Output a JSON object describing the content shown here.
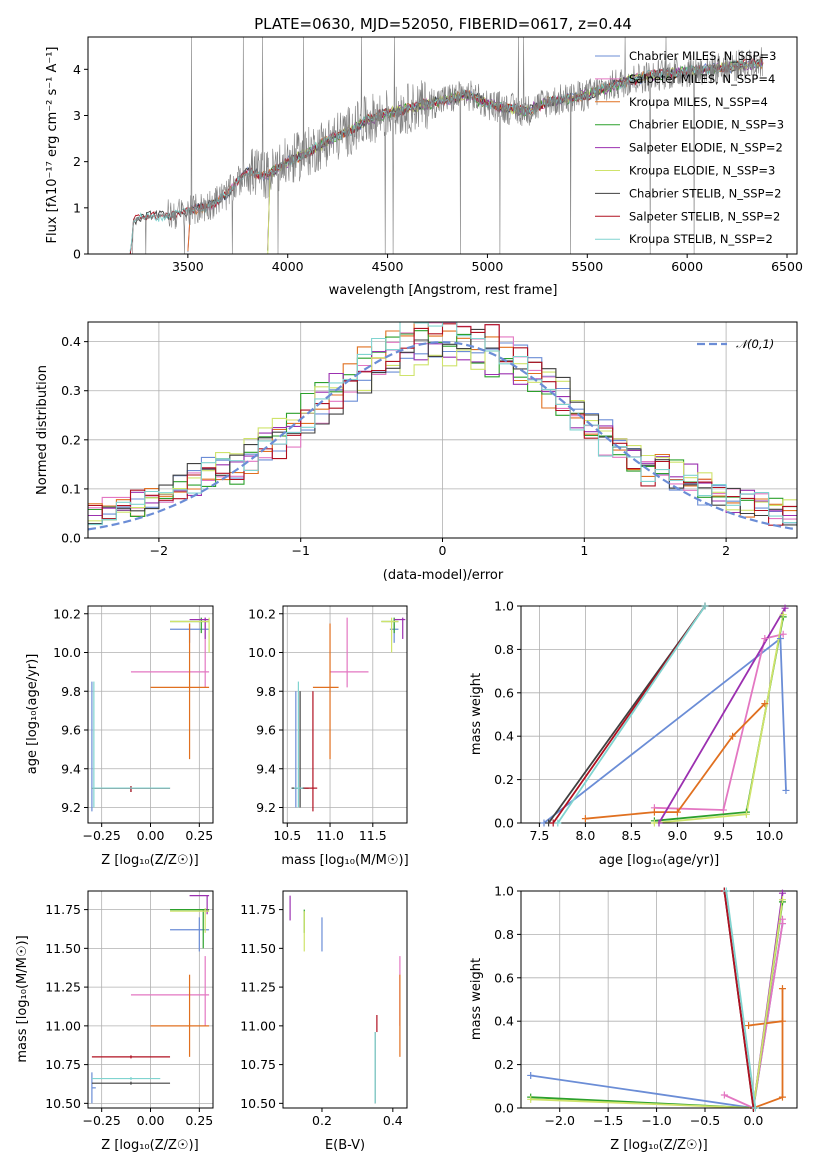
{
  "figure_title": "PLATE=0630, MJD=52050, FIBERID=0617, z=0.44",
  "chart_data": [
    {
      "id": "spectrum",
      "type": "line",
      "title": "PLATE=0630, MJD=52050, FIBERID=0617, z=0.44",
      "xlabel": "wavelength [Angstrom, rest frame]",
      "ylabel": "Flux [fλ10⁻¹⁷ erg cm⁻² s⁻¹ A⁻¹]",
      "xlim": [
        3000,
        6550
      ],
      "ylim": [
        0,
        4.7
      ],
      "xticks": [
        3500,
        4000,
        4500,
        5000,
        5500,
        6000,
        6500
      ],
      "yticks": [
        0,
        1,
        2,
        3,
        4
      ],
      "grid": false,
      "legend_position": "top-right",
      "data_envelope": {
        "x": [
          3210,
          3230,
          3300,
          3400,
          3500,
          3600,
          3700,
          3800,
          3900,
          4000,
          4100,
          4200,
          4300,
          4400,
          4500,
          4600,
          4700,
          4800,
          4900,
          5000,
          5100,
          5200,
          5300,
          5400,
          5500,
          5600,
          5700,
          5800,
          5900,
          6000,
          6100,
          6200,
          6300,
          6380
        ],
        "y": [
          0.0,
          0.75,
          0.8,
          0.85,
          0.9,
          1.05,
          1.3,
          1.8,
          1.7,
          2.0,
          2.2,
          2.45,
          2.65,
          2.9,
          3.05,
          3.15,
          3.25,
          3.35,
          3.45,
          3.25,
          3.15,
          3.1,
          3.3,
          3.35,
          3.45,
          3.6,
          3.75,
          3.85,
          3.9,
          3.95,
          4.0,
          4.05,
          4.1,
          4.15
        ]
      },
      "series": [
        {
          "name": "Chabrier MILES, N_SSP=3",
          "color": "#6b8dd6",
          "x0": 3500
        },
        {
          "name": "Salpeter MILES, N_SSP=4",
          "color": "#e377c2",
          "x0": 3500
        },
        {
          "name": "Kroupa MILES, N_SSP=4",
          "color": "#e07020",
          "x0": 3500
        },
        {
          "name": "Chabrier ELODIE, N_SSP=3",
          "color": "#2ca02c",
          "x0": 3900
        },
        {
          "name": "Salpeter ELODIE, N_SSP=2",
          "color": "#9b30b0",
          "x0": 3900
        },
        {
          "name": "Kroupa ELODIE, N_SSP=3",
          "color": "#cfe36b",
          "x0": 3900
        },
        {
          "name": "Chabrier STELIB, N_SSP=2",
          "color": "#404040",
          "x0": 3210
        },
        {
          "name": "Salpeter STELIB, N_SSP=2",
          "color": "#b01020",
          "x0": 3210
        },
        {
          "name": "Kroupa STELIB, N_SSP=2",
          "color": "#80d4d0",
          "x0": 3210
        }
      ]
    },
    {
      "id": "residuals",
      "type": "step",
      "xlabel": "(data-model)/error",
      "ylabel": "Normed distribution",
      "xlim": [
        -2.5,
        2.5
      ],
      "ylim": [
        0,
        0.44
      ],
      "xticks": [
        -2,
        -1,
        0,
        1,
        2
      ],
      "yticks": [
        0.0,
        0.1,
        0.2,
        0.3,
        0.4
      ],
      "grid": true,
      "legend_position": "top-right",
      "reference": {
        "name": "𝒩(0,1)",
        "color": "#6b8dd6",
        "style": "dashed"
      },
      "bin_width": 0.1,
      "series_colors": [
        "#6b8dd6",
        "#e377c2",
        "#e07020",
        "#2ca02c",
        "#9b30b0",
        "#cfe36b",
        "#404040",
        "#b01020",
        "#80d4d0"
      ]
    },
    {
      "id": "age_vs_Z",
      "type": "errorbar",
      "xlabel": "Z [log₁₀(Z/Z☉)]",
      "ylabel": "age  [log₁₀(age/yr)]",
      "xlim": [
        -0.32,
        0.32
      ],
      "ylim": [
        9.12,
        10.24
      ],
      "xticks": [
        -0.25,
        0.0,
        0.25
      ],
      "yticks": [
        9.2,
        9.4,
        9.6,
        9.8,
        10.0,
        10.2
      ],
      "grid": true,
      "points": [
        {
          "color": "#6b8dd6",
          "x": 0.2,
          "y": 10.12,
          "xlo": 0.1,
          "xhi": 0.3,
          "ylo": 10.05,
          "yhi": 10.15
        },
        {
          "color": "#6b8dd6",
          "x": -0.3,
          "y": 9.3,
          "xlo": -0.3,
          "xhi": -0.28,
          "ylo": 9.18,
          "yhi": 9.85
        },
        {
          "color": "#e377c2",
          "x": 0.28,
          "y": 9.9,
          "xlo": -0.1,
          "xhi": 0.3,
          "ylo": 9.82,
          "yhi": 10.18
        },
        {
          "color": "#e07020",
          "x": 0.2,
          "y": 9.82,
          "xlo": 0.0,
          "xhi": 0.3,
          "ylo": 9.45,
          "yhi": 10.15
        },
        {
          "color": "#2ca02c",
          "x": 0.26,
          "y": 10.16,
          "xlo": 0.1,
          "xhi": 0.3,
          "ylo": 10.1,
          "yhi": 10.18
        },
        {
          "color": "#9b30b0",
          "x": 0.28,
          "y": 10.17,
          "xlo": 0.2,
          "xhi": 0.3,
          "ylo": 10.07,
          "yhi": 10.18
        },
        {
          "color": "#cfe36b",
          "x": 0.3,
          "y": 10.16,
          "xlo": 0.1,
          "xhi": 0.3,
          "ylo": 10.0,
          "yhi": 10.18
        },
        {
          "color": "#404040",
          "x": -0.1,
          "y": 9.3,
          "xlo": -0.3,
          "xhi": 0.1,
          "ylo": 9.28,
          "yhi": 9.31
        },
        {
          "color": "#b01020",
          "x": -0.1,
          "y": 9.3,
          "xlo": -0.3,
          "xhi": 0.1,
          "ylo": 9.28,
          "yhi": 9.31
        },
        {
          "color": "#80d4d0",
          "x": -0.29,
          "y": 9.3,
          "xlo": -0.3,
          "xhi": 0.1,
          "ylo": 9.2,
          "yhi": 9.85
        }
      ]
    },
    {
      "id": "age_vs_mass",
      "type": "errorbar",
      "xlabel": "mass [log₁₀(M/M☉)]",
      "ylabel": "",
      "xlim": [
        10.45,
        11.9
      ],
      "ylim": [
        9.12,
        10.24
      ],
      "xticks": [
        10.5,
        11.0,
        11.5
      ],
      "yticks": [
        9.2,
        9.4,
        9.6,
        9.8,
        10.0,
        10.2
      ],
      "grid": true,
      "points": [
        {
          "color": "#6b8dd6",
          "x": 11.75,
          "y": 10.12,
          "xlo": 11.7,
          "xhi": 11.8,
          "ylo": 10.05,
          "yhi": 10.15
        },
        {
          "color": "#6b8dd6",
          "x": 10.6,
          "y": 9.3,
          "xlo": 10.58,
          "xhi": 10.62,
          "ylo": 9.2,
          "yhi": 9.8
        },
        {
          "color": "#e377c2",
          "x": 11.2,
          "y": 9.9,
          "xlo": 11.0,
          "xhi": 11.45,
          "ylo": 9.82,
          "yhi": 10.18
        },
        {
          "color": "#e07020",
          "x": 11.0,
          "y": 9.82,
          "xlo": 10.8,
          "xhi": 11.1,
          "ylo": 9.45,
          "yhi": 10.15
        },
        {
          "color": "#2ca02c",
          "x": 11.75,
          "y": 10.16,
          "xlo": 11.6,
          "xhi": 11.8,
          "ylo": 10.1,
          "yhi": 10.18
        },
        {
          "color": "#9b30b0",
          "x": 11.85,
          "y": 10.17,
          "xlo": 11.75,
          "xhi": 11.88,
          "ylo": 10.07,
          "yhi": 10.18
        },
        {
          "color": "#cfe36b",
          "x": 11.72,
          "y": 10.16,
          "xlo": 11.6,
          "xhi": 11.8,
          "ylo": 10.0,
          "yhi": 10.18
        },
        {
          "color": "#404040",
          "x": 10.65,
          "y": 9.3,
          "xlo": 10.55,
          "xhi": 10.75,
          "ylo": 9.2,
          "yhi": 9.8
        },
        {
          "color": "#b01020",
          "x": 10.8,
          "y": 9.3,
          "xlo": 10.7,
          "xhi": 10.85,
          "ylo": 9.18,
          "yhi": 9.8
        },
        {
          "color": "#80d4d0",
          "x": 10.63,
          "y": 9.3,
          "xlo": 10.58,
          "xhi": 10.68,
          "ylo": 9.2,
          "yhi": 9.85
        }
      ]
    },
    {
      "id": "weight_vs_age",
      "type": "line",
      "xlabel": "age  [log₁₀(age/yr)]",
      "ylabel": "mass weight",
      "xlim": [
        7.3,
        10.3
      ],
      "ylim": [
        0.0,
        1.0
      ],
      "xticks": [
        7.5,
        8.0,
        8.5,
        9.0,
        9.5,
        10.0
      ],
      "yticks": [
        0.0,
        0.2,
        0.4,
        0.6,
        0.8,
        1.0
      ],
      "grid": true,
      "series": [
        {
          "color": "#6b8dd6",
          "x": [
            7.55,
            10.12,
            10.18
          ],
          "y": [
            0.0,
            0.85,
            0.15
          ]
        },
        {
          "color": "#e377c2",
          "x": [
            8.75,
            9.5,
            9.95,
            10.15
          ],
          "y": [
            0.07,
            0.06,
            0.85,
            0.87
          ]
        },
        {
          "color": "#e07020",
          "x": [
            8.0,
            8.75,
            9.0,
            9.6,
            9.95
          ],
          "y": [
            0.02,
            0.05,
            0.05,
            0.4,
            0.55
          ]
        },
        {
          "color": "#2ca02c",
          "x": [
            8.75,
            9.75,
            10.15
          ],
          "y": [
            0.01,
            0.05,
            0.95
          ]
        },
        {
          "color": "#9b30b0",
          "x": [
            8.8,
            10.17
          ],
          "y": [
            0.0,
            0.99
          ]
        },
        {
          "color": "#cfe36b",
          "x": [
            8.75,
            9.75,
            10.15
          ],
          "y": [
            0.0,
            0.04,
            0.96
          ]
        },
        {
          "color": "#404040",
          "x": [
            7.6,
            9.3
          ],
          "y": [
            0.0,
            1.0
          ]
        },
        {
          "color": "#b01020",
          "x": [
            7.65,
            9.3
          ],
          "y": [
            0.0,
            1.0
          ]
        },
        {
          "color": "#80d4d0",
          "x": [
            7.7,
            9.3
          ],
          "y": [
            0.0,
            1.0
          ]
        }
      ]
    },
    {
      "id": "mass_vs_Z",
      "type": "errorbar",
      "xlabel": "Z [log₁₀(Z/Z☉)]",
      "ylabel": "mass [log₁₀(M/M☉)]",
      "xlim": [
        -0.32,
        0.32
      ],
      "ylim": [
        10.47,
        11.87
      ],
      "xticks": [
        -0.25,
        0.0,
        0.25
      ],
      "yticks": [
        10.5,
        10.75,
        11.0,
        11.25,
        11.5,
        11.75
      ],
      "grid": true,
      "points": [
        {
          "color": "#6b8dd6",
          "x": 0.25,
          "y": 11.62,
          "xlo": 0.1,
          "xhi": 0.3,
          "ylo": 11.48,
          "yhi": 11.7
        },
        {
          "color": "#6b8dd6",
          "x": -0.3,
          "y": 10.6,
          "xlo": -0.3,
          "xhi": -0.28,
          "ylo": 10.5,
          "yhi": 10.7
        },
        {
          "color": "#e377c2",
          "x": 0.28,
          "y": 11.2,
          "xlo": -0.1,
          "xhi": 0.3,
          "ylo": 11.0,
          "yhi": 11.45
        },
        {
          "color": "#e07020",
          "x": 0.2,
          "y": 11.0,
          "xlo": 0.0,
          "xhi": 0.3,
          "ylo": 10.8,
          "yhi": 11.33
        },
        {
          "color": "#2ca02c",
          "x": 0.27,
          "y": 11.75,
          "xlo": 0.1,
          "xhi": 0.3,
          "ylo": 11.5,
          "yhi": 11.75
        },
        {
          "color": "#9b30b0",
          "x": 0.29,
          "y": 11.84,
          "xlo": 0.2,
          "xhi": 0.3,
          "ylo": 11.72,
          "yhi": 11.84
        },
        {
          "color": "#cfe36b",
          "x": 0.28,
          "y": 11.74,
          "xlo": 0.1,
          "xhi": 0.3,
          "ylo": 11.6,
          "yhi": 11.76
        },
        {
          "color": "#404040",
          "x": -0.1,
          "y": 10.63,
          "xlo": -0.3,
          "xhi": 0.1,
          "ylo": 10.62,
          "yhi": 10.64
        },
        {
          "color": "#b01020",
          "x": -0.1,
          "y": 10.8,
          "xlo": -0.3,
          "xhi": 0.1,
          "ylo": 10.79,
          "yhi": 10.81
        },
        {
          "color": "#80d4d0",
          "x": -0.1,
          "y": 10.66,
          "xlo": -0.3,
          "xhi": 0.05,
          "ylo": 10.65,
          "yhi": 10.67
        }
      ]
    },
    {
      "id": "mass_vs_ebv",
      "type": "errorbar",
      "xlabel": "E(B-V)",
      "ylabel": "",
      "xlim": [
        0.09,
        0.44
      ],
      "ylim": [
        10.47,
        11.87
      ],
      "xticks": [
        0.2,
        0.4
      ],
      "yticks": [
        10.5,
        10.75,
        11.0,
        11.25,
        11.5,
        11.75
      ],
      "grid": false,
      "points": [
        {
          "color": "#6b8dd6",
          "x": 0.2,
          "y": 11.6,
          "ylo": 11.48,
          "yhi": 11.7
        },
        {
          "color": "#e377c2",
          "x": 0.42,
          "y": 11.2,
          "ylo": 11.0,
          "yhi": 11.45
        },
        {
          "color": "#e07020",
          "x": 0.42,
          "y": 11.0,
          "ylo": 10.8,
          "yhi": 11.33
        },
        {
          "color": "#2ca02c",
          "x": 0.15,
          "y": 11.75,
          "ylo": 11.6,
          "yhi": 11.75
        },
        {
          "color": "#9b30b0",
          "x": 0.11,
          "y": 11.8,
          "ylo": 11.68,
          "yhi": 11.84
        },
        {
          "color": "#cfe36b",
          "x": 0.15,
          "y": 11.6,
          "ylo": 11.48,
          "yhi": 11.74
        },
        {
          "color": "#404040",
          "x": 0.35,
          "y": 10.7,
          "ylo": 10.5,
          "yhi": 10.96
        },
        {
          "color": "#b01020",
          "x": 0.355,
          "y": 10.9,
          "ylo": 10.96,
          "yhi": 11.07
        },
        {
          "color": "#80d4d0",
          "x": 0.35,
          "y": 10.7,
          "ylo": 10.5,
          "yhi": 10.96
        }
      ]
    },
    {
      "id": "weight_vs_Z",
      "type": "line",
      "xlabel": "Z [log₁₀(Z/Z☉)]",
      "ylabel": "mass weight",
      "xlim": [
        -2.4,
        0.45
      ],
      "ylim": [
        0.0,
        1.0
      ],
      "xticks": [
        -2.0,
        -1.5,
        -1.0,
        -0.5,
        0.0
      ],
      "yticks": [
        0.0,
        0.2,
        0.4,
        0.6,
        0.8,
        1.0
      ],
      "grid": true,
      "series": [
        {
          "color": "#6b8dd6",
          "x": [
            -2.3,
            0.0,
            0.3
          ],
          "y": [
            0.15,
            0.0,
            0.85
          ]
        },
        {
          "color": "#e377c2",
          "x": [
            -0.3,
            0.0,
            0.3,
            0.3
          ],
          "y": [
            0.06,
            0.0,
            0.85,
            0.87
          ]
        },
        {
          "color": "#e07020",
          "x": [
            0.0,
            0.3,
            0.3,
            0.3,
            -0.05
          ],
          "y": [
            0.0,
            0.05,
            0.55,
            0.4,
            0.38
          ]
        },
        {
          "color": "#2ca02c",
          "x": [
            -2.3,
            0.0,
            0.3
          ],
          "y": [
            0.05,
            0.0,
            0.95
          ]
        },
        {
          "color": "#9b30b0",
          "x": [
            0.0,
            0.3
          ],
          "y": [
            0.0,
            0.99
          ]
        },
        {
          "color": "#cfe36b",
          "x": [
            -2.3,
            0.0,
            0.3
          ],
          "y": [
            0.04,
            0.0,
            0.96
          ]
        },
        {
          "color": "#404040",
          "x": [
            -0.3,
            0.0
          ],
          "y": [
            1.0,
            0.0
          ]
        },
        {
          "color": "#b01020",
          "x": [
            -0.3,
            0.0
          ],
          "y": [
            1.0,
            0.0
          ]
        },
        {
          "color": "#80d4d0",
          "x": [
            -0.28,
            0.02
          ],
          "y": [
            1.0,
            0.0
          ]
        }
      ]
    }
  ]
}
